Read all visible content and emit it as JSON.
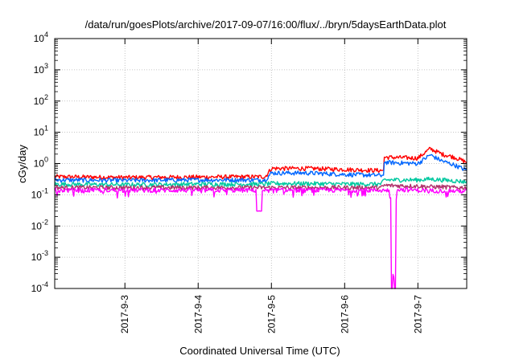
{
  "chart_data": {
    "type": "line",
    "title": "/data/run/goesPlots/archive/2017-09-07/16:00/flux/../bryn/5daysEarthData.plot",
    "xlabel": "Coordinated Universal Time (UTC)",
    "ylabel": "cGy/day",
    "yscale": "log",
    "ylim": [
      0.0001,
      10000
    ],
    "xlim": [
      "2017-09-02 01:00",
      "2017-09-07 16:00"
    ],
    "y_ticks": [
      {
        "base": "10",
        "exp": "-4"
      },
      {
        "base": "10",
        "exp": "-3"
      },
      {
        "base": "10",
        "exp": "-2"
      },
      {
        "base": "10",
        "exp": "-1"
      },
      {
        "base": "10",
        "exp": "0"
      },
      {
        "base": "10",
        "exp": "1"
      },
      {
        "base": "10",
        "exp": "2"
      },
      {
        "base": "10",
        "exp": "3"
      },
      {
        "base": "10",
        "exp": "4"
      }
    ],
    "x_ticks": [
      "2017-9-3",
      "2017-9-4",
      "2017-9-5",
      "2017-9-6",
      "2017-9-7"
    ],
    "grid": true,
    "series": [
      {
        "color": "#ff0000",
        "x": [
          "2017-09-02 01:00",
          "2017-09-03 00:00",
          "2017-09-04 00:00",
          "2017-09-04 22:00",
          "2017-09-05 00:00",
          "2017-09-05 12:00",
          "2017-09-06 00:00",
          "2017-09-06 12:00",
          "2017-09-06 13:00",
          "2017-09-07 00:00",
          "2017-09-07 04:00",
          "2017-09-07 08:00",
          "2017-09-07 12:00",
          "2017-09-07 16:00"
        ],
        "values": [
          0.38,
          0.36,
          0.37,
          0.38,
          0.7,
          0.7,
          0.65,
          0.6,
          1.6,
          1.5,
          3.0,
          2.0,
          1.6,
          1.1
        ]
      },
      {
        "color": "#0066ff",
        "x": [
          "2017-09-02 01:00",
          "2017-09-03 00:00",
          "2017-09-04 00:00",
          "2017-09-04 22:00",
          "2017-09-05 00:00",
          "2017-09-05 12:00",
          "2017-09-06 00:00",
          "2017-09-06 12:00",
          "2017-09-06 13:00",
          "2017-09-07 00:00",
          "2017-09-07 04:00",
          "2017-09-07 08:00",
          "2017-09-07 12:00",
          "2017-09-07 16:00"
        ],
        "values": [
          0.3,
          0.29,
          0.3,
          0.3,
          0.5,
          0.5,
          0.45,
          0.42,
          1.1,
          1.0,
          1.9,
          1.2,
          0.9,
          0.6
        ]
      },
      {
        "color": "#00c8a0",
        "x": [
          "2017-09-02 01:00",
          "2017-09-03 00:00",
          "2017-09-04 00:00",
          "2017-09-04 22:00",
          "2017-09-05 00:00",
          "2017-09-05 12:00",
          "2017-09-06 00:00",
          "2017-09-06 12:00",
          "2017-09-06 13:00",
          "2017-09-07 00:00",
          "2017-09-07 04:00",
          "2017-09-07 08:00",
          "2017-09-07 12:00",
          "2017-09-07 16:00"
        ],
        "values": [
          0.22,
          0.21,
          0.22,
          0.22,
          0.23,
          0.23,
          0.22,
          0.22,
          0.3,
          0.3,
          0.32,
          0.3,
          0.28,
          0.26
        ]
      },
      {
        "color": "#b0306a",
        "x": [
          "2017-09-02 01:00",
          "2017-09-03 00:00",
          "2017-09-04 00:00",
          "2017-09-04 22:00",
          "2017-09-05 00:00",
          "2017-09-05 12:00",
          "2017-09-06 00:00",
          "2017-09-06 12:00",
          "2017-09-06 13:00",
          "2017-09-07 00:00",
          "2017-09-07 04:00",
          "2017-09-07 08:00",
          "2017-09-07 12:00",
          "2017-09-07 16:00"
        ],
        "values": [
          0.17,
          0.17,
          0.17,
          0.17,
          0.17,
          0.17,
          0.17,
          0.17,
          0.2,
          0.19,
          0.18,
          0.18,
          0.17,
          0.17
        ]
      },
      {
        "color": "#ff00ff",
        "x": [
          "2017-09-02 01:00",
          "2017-09-03 00:00",
          "2017-09-04 00:00",
          "2017-09-04 19:00",
          "2017-09-04 20:00",
          "2017-09-04 21:00",
          "2017-09-05 00:00",
          "2017-09-06 00:00",
          "2017-09-06 15:00",
          "2017-09-06 16:00",
          "2017-09-06 17:00",
          "2017-09-07 00:00",
          "2017-09-07 16:00"
        ],
        "values": [
          0.14,
          0.14,
          0.14,
          0.14,
          0.03,
          0.14,
          0.14,
          0.14,
          0.14,
          0.0001,
          0.15,
          0.14,
          0.13
        ]
      }
    ]
  }
}
